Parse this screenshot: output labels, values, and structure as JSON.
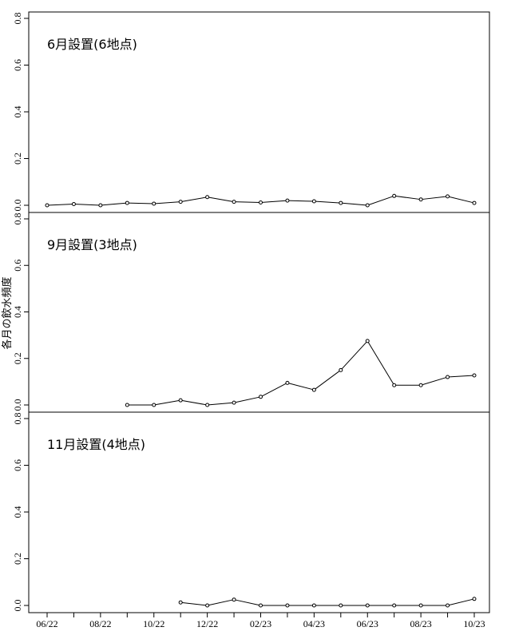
{
  "chart_data": {
    "type": "line",
    "ylabel": "各月の飲水頻度",
    "x_ticks": [
      "06/22",
      "08/22",
      "10/22",
      "12/22",
      "02/23",
      "04/23",
      "06/23",
      "08/23",
      "10/23"
    ],
    "months": [
      "06/22",
      "07/22",
      "08/22",
      "09/22",
      "10/22",
      "11/22",
      "12/22",
      "01/23",
      "02/23",
      "03/23",
      "04/23",
      "05/23",
      "06/23",
      "07/23",
      "08/23",
      "09/23",
      "10/23"
    ],
    "ylim": [
      0,
      0.8
    ],
    "y_ticks": [
      "0.0",
      "0.2",
      "0.4",
      "0.6",
      "0.8"
    ],
    "panels": [
      {
        "title": "6月設置(6地点)",
        "values": [
          0.0,
          0.005,
          0.0,
          0.01,
          0.007,
          0.015,
          0.035,
          0.015,
          0.012,
          0.02,
          0.017,
          0.01,
          0.0,
          0.04,
          0.025,
          0.038,
          0.01
        ]
      },
      {
        "title": "9月設置(3地点)",
        "values": [
          null,
          null,
          null,
          0.0,
          0.0,
          0.02,
          0.0,
          0.01,
          0.035,
          0.095,
          0.065,
          0.15,
          0.275,
          0.085,
          0.085,
          0.12,
          0.127
        ]
      },
      {
        "title": "11月設置(4地点)",
        "values": [
          null,
          null,
          null,
          null,
          null,
          0.013,
          0.0,
          0.025,
          0.0,
          0.0,
          0.0,
          0.0,
          0.0,
          0.0,
          0.0,
          0.0,
          0.028
        ]
      }
    ]
  }
}
